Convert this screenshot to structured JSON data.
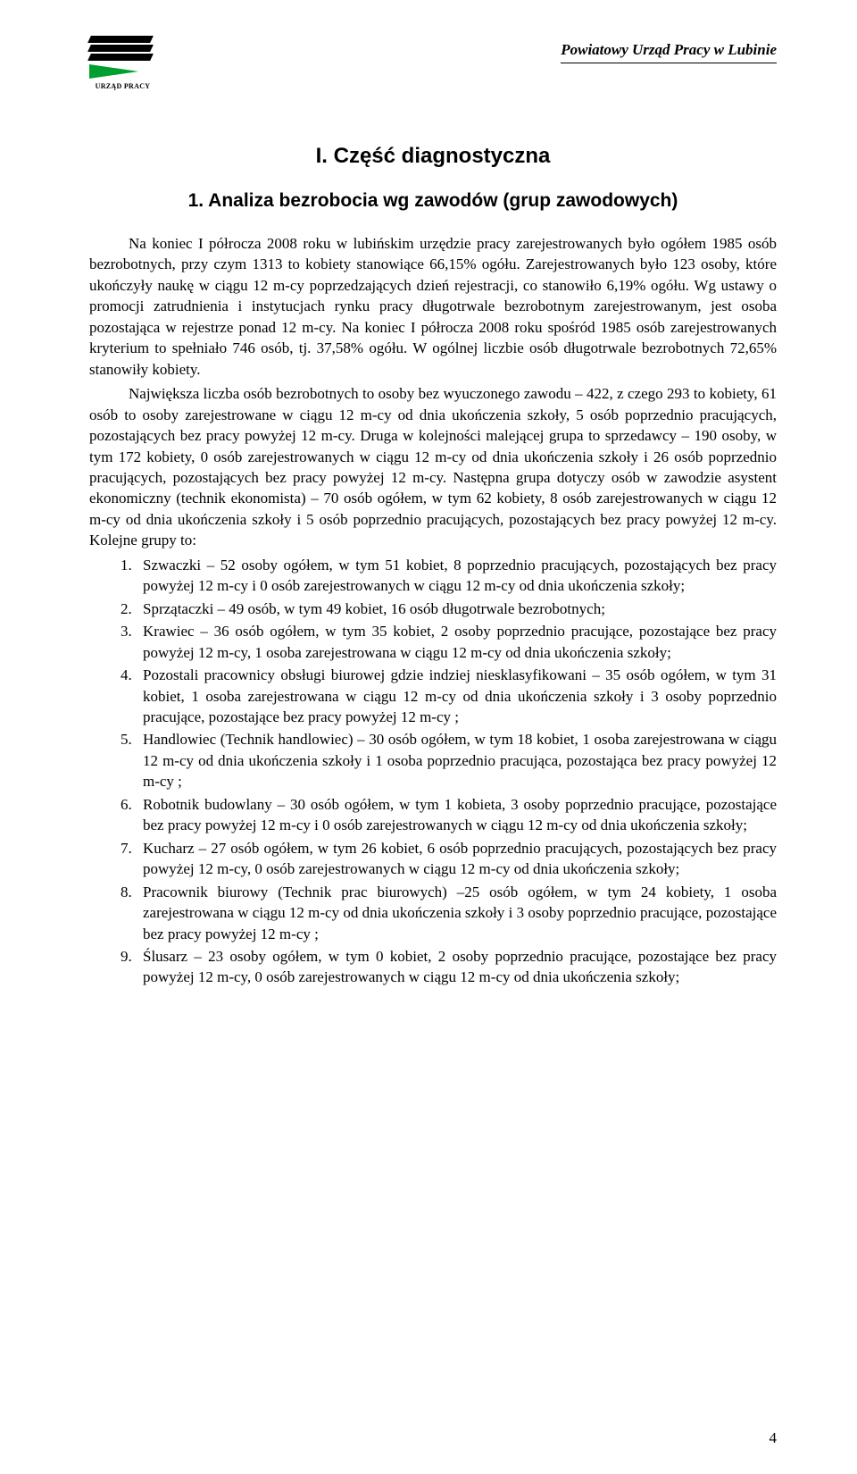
{
  "header": {
    "logo_label": "URZĄD PRACY",
    "org_title": "Powiatowy Urząd Pracy w Lubinie"
  },
  "section_title": "I. Część diagnostyczna",
  "subsection_title": "1. Analiza bezrobocia wg zawodów (grup zawodowych)",
  "paragraphs": {
    "p1": "Na koniec I półrocza 2008 roku w lubińskim urzędzie pracy zarejestrowanych było ogółem 1985 osób bezrobotnych, przy czym 1313 to kobiety stanowiące 66,15% ogółu. Zarejestrowanych było 123 osoby, które ukończyły naukę w ciągu 12 m-cy poprzedzających dzień rejestracji, co stanowiło 6,19% ogółu. Wg ustawy o promocji zatrudnienia i instytucjach rynku pracy długotrwale bezrobotnym zarejestrowanym, jest osoba pozostająca w rejestrze ponad 12 m-cy. Na koniec I półrocza 2008 roku spośród 1985 osób zarejestrowanych kryterium to spełniało 746 osób, tj. 37,58% ogółu. W ogólnej liczbie osób długotrwale bezrobotnych 72,65% stanowiły kobiety.",
    "p2": "Największa liczba osób bezrobotnych to osoby bez wyuczonego zawodu – 422, z czego 293 to kobiety, 61 osób to osoby zarejestrowane w ciągu 12 m-cy od dnia ukończenia szkoły, 5 osób poprzednio pracujących, pozostających bez pracy powyżej 12 m-cy. Druga w kolejności malejącej grupa to sprzedawcy – 190 osoby, w tym 172 kobiety, 0 osób zarejestrowanych w ciągu 12 m-cy od dnia ukończenia szkoły i 26 osób poprzednio pracujących, pozostających bez pracy powyżej 12 m-cy. Następna grupa dotyczy osób w zawodzie asystent ekonomiczny (technik ekonomista) – 70 osób ogółem, w tym 62 kobiety, 8 osób zarejestrowanych w ciągu 12 m-cy od dnia ukończenia szkoły i 5 osób poprzednio pracujących, pozostających bez pracy powyżej 12 m-cy. Kolejne grupy to:"
  },
  "list_items": [
    "Szwaczki – 52 osoby ogółem, w tym 51 kobiet, 8 poprzednio pracujących, pozostających bez pracy powyżej 12 m-cy  i 0 osób zarejestrowanych w ciągu 12 m-cy od dnia ukończenia szkoły;",
    "Sprzątaczki – 49 osób, w tym 49 kobiet, 16 osób długotrwale bezrobotnych;",
    "Krawiec – 36 osób ogółem, w tym 35 kobiet, 2 osoby poprzednio pracujące, pozostające bez pracy powyżej 12 m-cy, 1 osoba zarejestrowana w ciągu 12 m-cy od dnia ukończenia szkoły;",
    "Pozostali pracownicy obsługi biurowej gdzie indziej niesklasyfikowani – 35 osób ogółem, w tym 31 kobiet, 1 osoba zarejestrowana w ciągu 12 m-cy od dnia ukończenia szkoły i 3 osoby poprzednio pracujące, pozostające bez pracy powyżej 12 m-cy ;",
    "Handlowiec (Technik handlowiec) – 30 osób ogółem, w tym 18 kobiet, 1 osoba zarejestrowana w ciągu 12 m-cy od dnia ukończenia szkoły i 1 osoba poprzednio pracująca, pozostająca bez pracy powyżej 12 m-cy ;",
    "Robotnik budowlany – 30 osób ogółem, w tym 1 kobieta, 3 osoby poprzednio pracujące, pozostające bez pracy powyżej 12 m-cy  i 0 osób zarejestrowanych w ciągu 12 m-cy od dnia ukończenia szkoły;",
    "Kucharz – 27 osób ogółem, w tym 26 kobiet, 6 osób poprzednio pracujących, pozostających bez pracy powyżej 12 m-cy, 0 osób zarejestrowanych w ciągu 12 m-cy od dnia ukończenia szkoły;",
    "Pracownik biurowy (Technik prac biurowych) –25 osób ogółem, w tym 24 kobiety, 1 osoba zarejestrowana w ciągu 12 m-cy od dnia ukończenia szkoły i 3 osoby poprzednio pracujące, pozostające bez pracy powyżej 12 m-cy ;",
    "Ślusarz – 23 osoby ogółem, w tym 0 kobiet, 2 osoby poprzednio pracujące, pozostające bez pracy powyżej 12 m-cy, 0 osób zarejestrowanych w ciągu 12 m-cy od dnia ukończenia szkoły;"
  ],
  "page_number": "4",
  "colors": {
    "black": "#000000",
    "green": "#00a030",
    "background": "#ffffff"
  },
  "typography": {
    "body_font": "Times New Roman",
    "heading_font": "Arial",
    "body_size_pt": 12,
    "h1_size_pt": 18,
    "h2_size_pt": 16
  }
}
